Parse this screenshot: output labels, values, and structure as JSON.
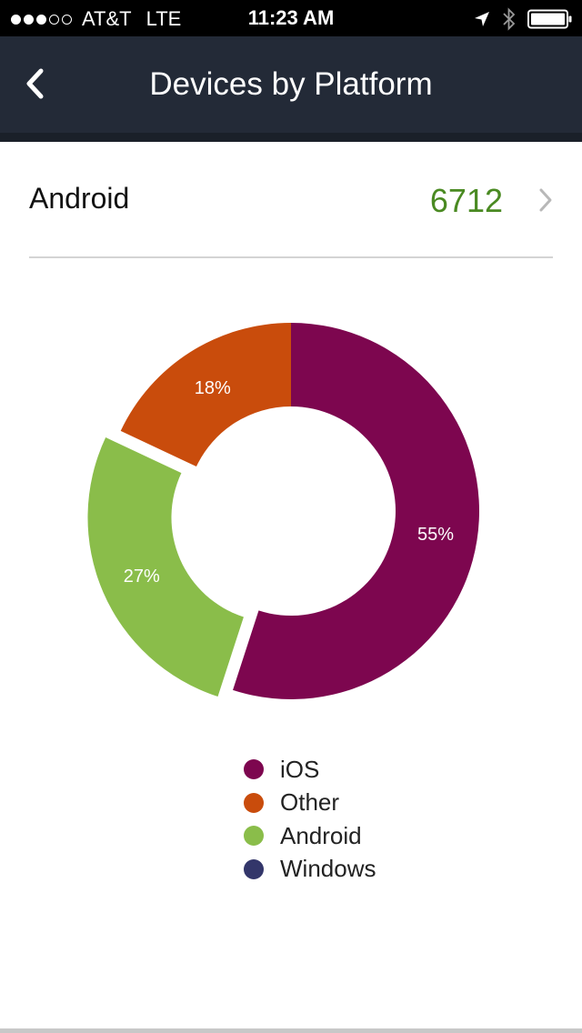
{
  "status_bar": {
    "carrier": "AT&T",
    "network": "LTE",
    "time": "11:23 AM",
    "signal_bars_filled": 3,
    "signal_bars_total": 5,
    "icons": [
      "location-arrow-icon",
      "bluetooth-icon",
      "battery-icon"
    ]
  },
  "nav": {
    "title": "Devices by Platform",
    "back_icon": "chevron-left-icon"
  },
  "selected": {
    "label": "Android",
    "value": "6712",
    "chevron_icon": "chevron-right-icon"
  },
  "colors": {
    "nav_background": "#232a37",
    "value_green": "#4a8a22",
    "ios": "#7d064f",
    "other": "#c94c0c",
    "android": "#8abd4a",
    "windows": "#33366a"
  },
  "chart_data": {
    "type": "pie",
    "donut": true,
    "exploded": "Android",
    "start": "top",
    "direction": "clockwise",
    "slices": [
      {
        "name": "iOS",
        "value": 55,
        "label": "55%",
        "color": "#7d064f"
      },
      {
        "name": "Android",
        "value": 27,
        "label": "27%",
        "color": "#8abd4a"
      },
      {
        "name": "Other",
        "value": 18,
        "label": "18%",
        "color": "#c94c0c"
      }
    ],
    "legend": [
      {
        "name": "iOS",
        "color": "#7d064f"
      },
      {
        "name": "Other",
        "color": "#c94c0c"
      },
      {
        "name": "Android",
        "color": "#8abd4a"
      },
      {
        "name": "Windows",
        "color": "#33366a"
      }
    ],
    "legend_placement": "bottom"
  }
}
